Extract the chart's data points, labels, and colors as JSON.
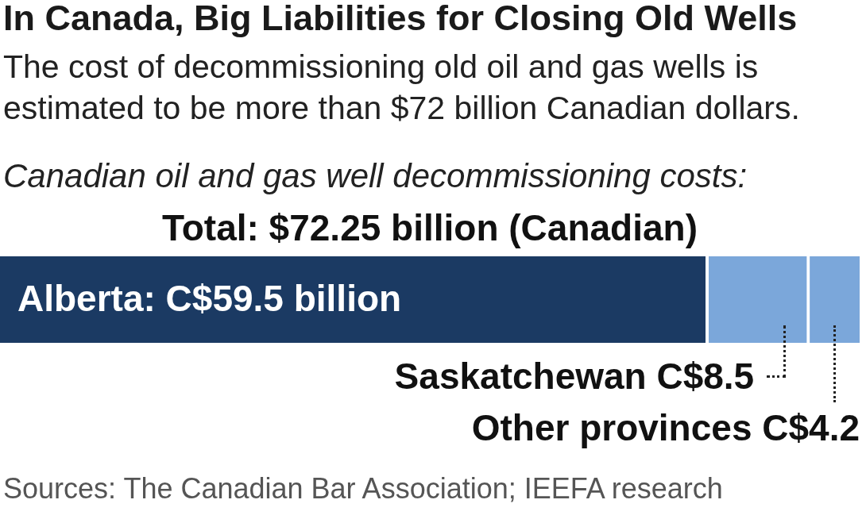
{
  "chart_data": {
    "type": "bar",
    "orientation": "horizontal",
    "stacked": true,
    "title": "In Canada, Big Liabilities for Closing Old Wells",
    "subtitle": "The cost of decommissioning old oil and gas wells is estimated to be more than $72 billion Canadian dollars.",
    "annotations": [
      "Canadian oil and gas well decommissioning costs:",
      "Total: $72.25 billion (Canadian)",
      "Sources: The Canadian Bar Association; IEEFA research"
    ],
    "categories": [
      null
    ],
    "series": [
      {
        "color": "#1b3a63",
        "values": [
          59.5
        ],
        "value_labels": [
          "Alberta: C$59.5 billion"
        ]
      },
      {
        "color": "#7ba7da",
        "values": [
          8.5
        ],
        "value_labels": [
          "Saskatchewan C$8.5"
        ]
      },
      {
        "color": "#7ba7da",
        "values": [
          4.2
        ],
        "value_labels": [
          "Other provinces C$4.2"
        ]
      }
    ],
    "tick_labels": false,
    "grid": false
  }
}
